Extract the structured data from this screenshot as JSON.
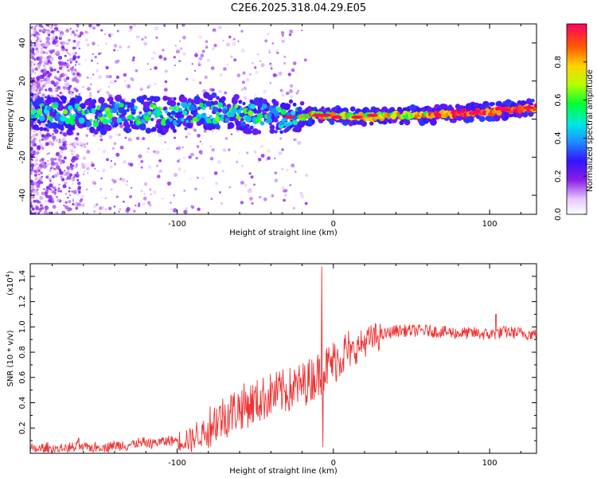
{
  "figure_title": "C2E6.2025.318.04.29.E05",
  "chart_data": [
    {
      "type": "heatmap",
      "title": "C2E6.2025.318.04.29.E05",
      "xlabel": "Height of straight line (km)",
      "ylabel": "Frequency (Hz)",
      "xlim": [
        -194,
        130
      ],
      "ylim": [
        -50,
        50
      ],
      "xticks": [
        -100,
        0,
        100
      ],
      "xtick_labels": [
        "-100",
        "0",
        "100"
      ],
      "yticks": [
        -40,
        -20,
        0,
        20,
        40
      ],
      "ytick_labels": [
        "-40",
        "-20",
        "0",
        "20",
        "40"
      ],
      "ridge": {
        "description": "dominant frequency band (center, Hz) vs height (km)",
        "x": [
          -190,
          -170,
          -150,
          -130,
          -110,
          -95,
          -80,
          -65,
          -50,
          -40,
          -30,
          -20,
          -10,
          0,
          20,
          40,
          60,
          80,
          100,
          115,
          130
        ],
        "y": [
          4,
          2,
          2,
          3,
          2,
          3,
          4,
          3,
          2,
          2,
          1,
          1,
          2,
          2,
          1,
          2,
          2,
          3,
          4,
          5,
          6
        ]
      },
      "colorbar": {
        "label": "Normalized spectral amplitude",
        "range": [
          0,
          1
        ],
        "ticks": [
          0.0,
          0.2,
          0.4,
          0.6,
          0.8
        ],
        "tick_labels": [
          "0.0",
          "0.2",
          "0.4",
          "0.6",
          "0.8"
        ]
      }
    },
    {
      "type": "line",
      "xlabel": "Height of straight line (km)",
      "ylabel": "SNR (10 * v/v)",
      "scale_label": "(x10",
      "scale_exponent": "4",
      "scale_suffix": ")",
      "xlim": [
        -194,
        130
      ],
      "ylim": [
        0,
        1.5
      ],
      "xticks": [
        -100,
        0,
        100
      ],
      "xtick_labels": [
        "-100",
        "0",
        "100"
      ],
      "yticks": [
        0.2,
        0.4,
        0.6,
        0.8,
        1.0,
        1.2,
        1.4
      ],
      "ytick_labels": [
        "0.2",
        "0.4",
        "0.6",
        "0.8",
        "1.0",
        "1.2",
        "1.4"
      ],
      "color": "#f03232",
      "series": [
        {
          "name": "SNR",
          "envelope_x": [
            -194,
            -170,
            -150,
            -130,
            -110,
            -90,
            -80,
            -70,
            -60,
            -50,
            -40,
            -30,
            -20,
            -10,
            0,
            10,
            20,
            30,
            40,
            50,
            60,
            70,
            80,
            90,
            100,
            110,
            120,
            130
          ],
          "envelope_y": [
            0.03,
            0.04,
            0.05,
            0.07,
            0.09,
            0.12,
            0.18,
            0.25,
            0.32,
            0.36,
            0.42,
            0.45,
            0.5,
            0.58,
            0.68,
            0.78,
            0.88,
            0.93,
            0.97,
            0.97,
            0.97,
            0.96,
            0.95,
            0.95,
            0.94,
            0.96,
            0.95,
            0.94
          ],
          "spike_x": -7.5,
          "spike_y": 1.48
        }
      ]
    }
  ]
}
